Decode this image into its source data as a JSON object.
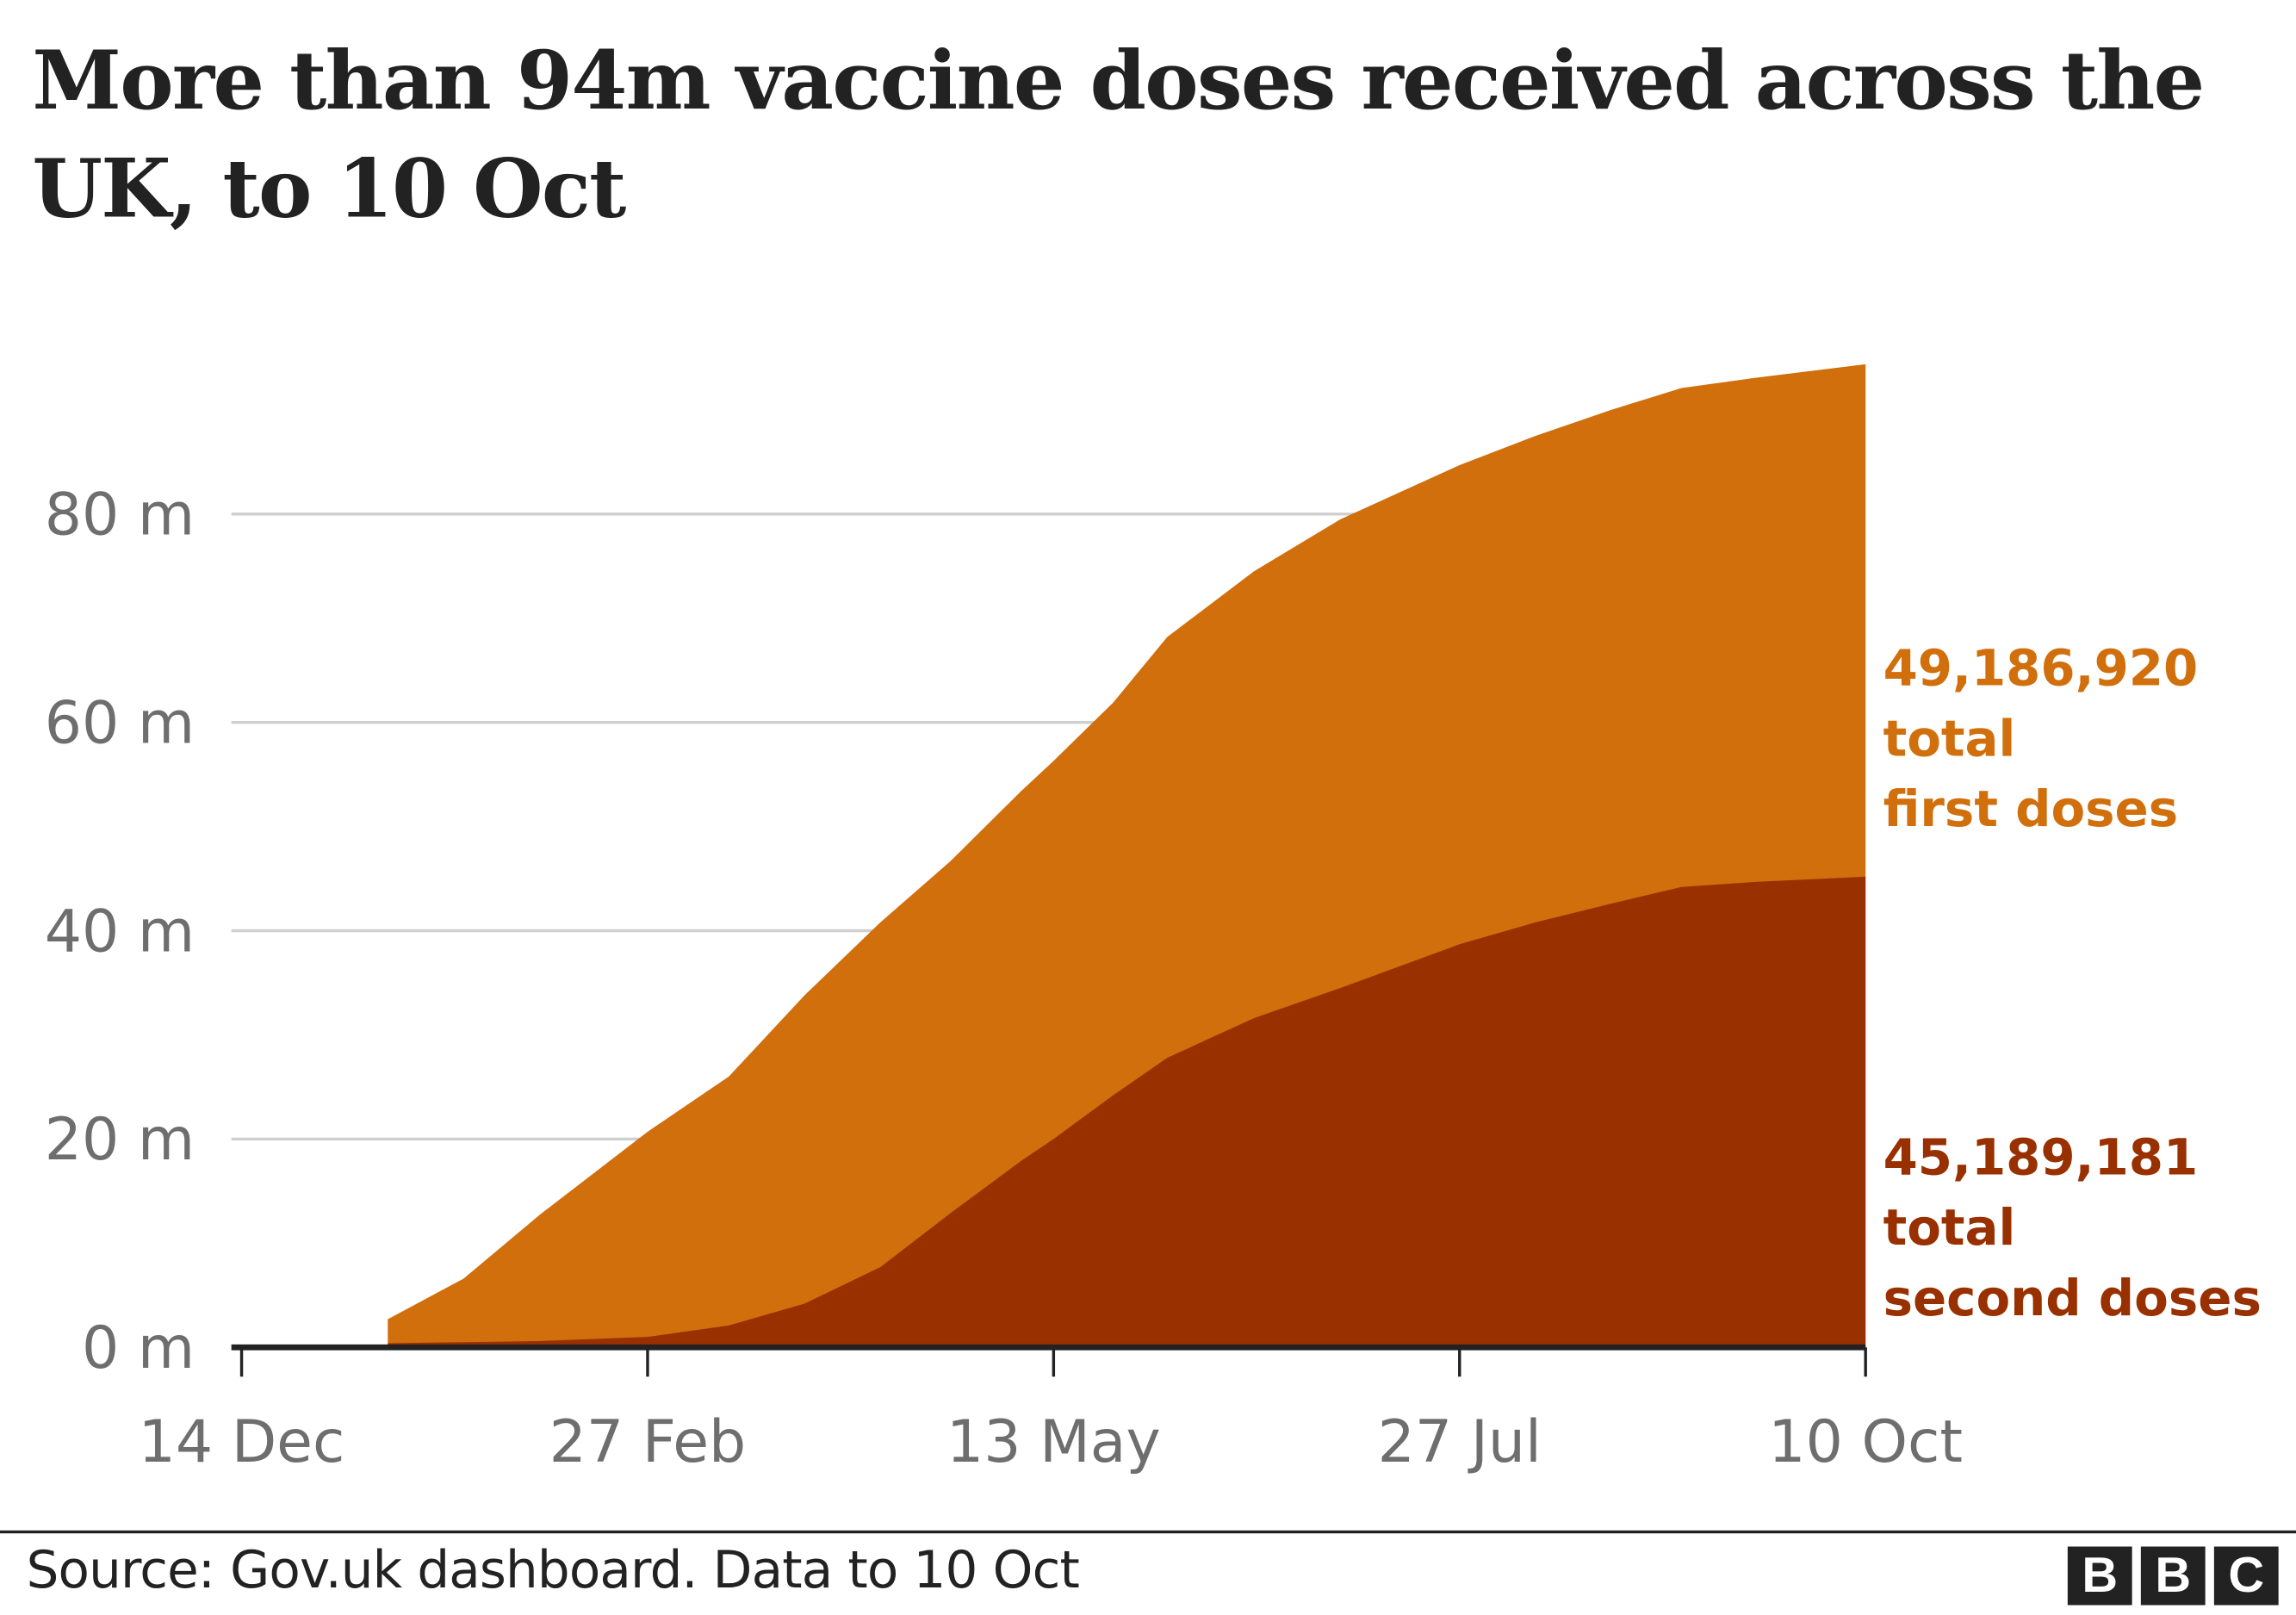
{
  "chart_data": {
    "type": "area",
    "stacked": true,
    "title": "More than 94m vaccine doses received across the UK, to 10 Oct",
    "xlabel": "",
    "ylabel": "",
    "xlim": [
      "2020-12-14",
      "2021-10-10"
    ],
    "ylim": [
      0,
      94.4
    ],
    "grid": true,
    "x_ticks": [
      {
        "date": "2020-12-14",
        "label": "14 Dec"
      },
      {
        "date": "2021-02-27",
        "label": "27 Feb"
      },
      {
        "date": "2021-05-13",
        "label": "13 May"
      },
      {
        "date": "2021-07-27",
        "label": "27 Jul"
      },
      {
        "date": "2021-10-10",
        "label": "10 Oct"
      }
    ],
    "y_ticks": [
      {
        "value": 0,
        "label": "0 m"
      },
      {
        "value": 20,
        "label": "20 m"
      },
      {
        "value": 40,
        "label": "40 m"
      },
      {
        "value": 60,
        "label": "60 m"
      },
      {
        "value": 80,
        "label": "80 m"
      }
    ],
    "x": [
      "2021-01-10",
      "2021-01-24",
      "2021-02-07",
      "2021-02-27",
      "2021-03-14",
      "2021-03-28",
      "2021-04-11",
      "2021-04-24",
      "2021-05-07",
      "2021-05-13",
      "2021-05-24",
      "2021-06-03",
      "2021-06-19",
      "2021-07-05",
      "2021-07-27",
      "2021-08-10",
      "2021-08-24",
      "2021-09-06",
      "2021-09-20",
      "2021-10-10"
    ],
    "series": [
      {
        "name": "total second doses",
        "color": "#993000",
        "values": [
          0.4,
          0.5,
          0.6,
          1.0,
          2.1,
          4.2,
          7.7,
          12.9,
          17.9,
          20.0,
          24.2,
          27.8,
          31.6,
          34.5,
          38.7,
          40.8,
          42.6,
          44.2,
          44.7,
          45.19
        ]
      },
      {
        "name": "total first doses",
        "color": "#d06f0c",
        "values": [
          2.3,
          6.1,
          12.1,
          19.7,
          23.9,
          29.6,
          33.1,
          33.8,
          35.5,
          36.3,
          37.7,
          40.4,
          42.9,
          45.0,
          46.0,
          46.7,
          47.4,
          47.9,
          48.4,
          49.19
        ]
      }
    ],
    "annotations": [
      {
        "series": "total first doses",
        "value": "49,186,920",
        "lines": [
          "total",
          "first doses"
        ],
        "color": "#d06f0c"
      },
      {
        "series": "total second doses",
        "value": "45,189,181",
        "lines": [
          "total",
          "second doses"
        ],
        "color": "#993000"
      }
    ]
  },
  "footer": {
    "source": "Source: Gov.uk dashboard. Data to 10 Oct",
    "logo": [
      "B",
      "B",
      "C"
    ]
  }
}
